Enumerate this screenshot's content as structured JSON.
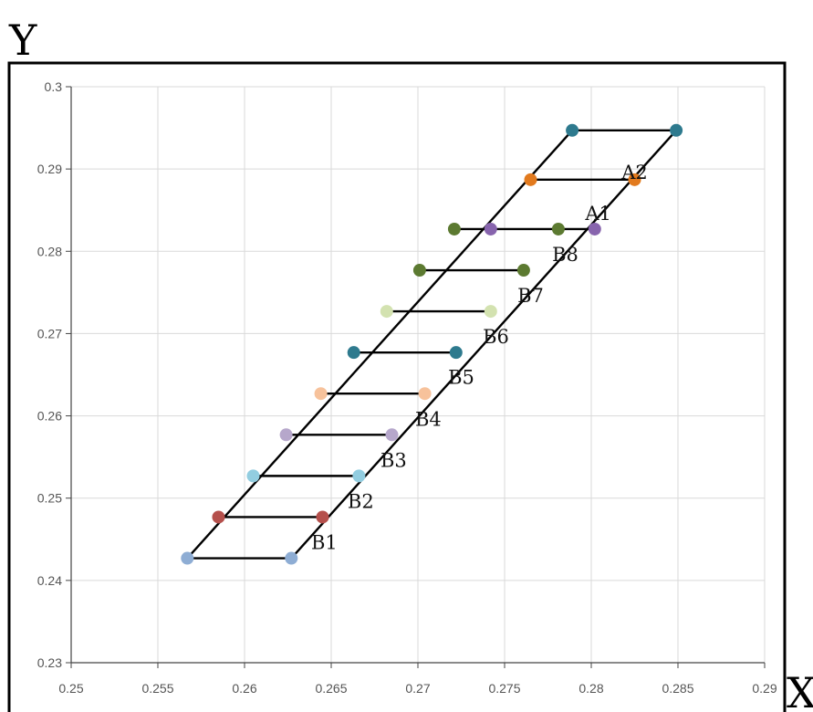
{
  "chart_data": {
    "type": "scatter",
    "xlabel": "X",
    "ylabel": "Y",
    "xlim": [
      0.25,
      0.29
    ],
    "ylim": [
      0.23,
      0.3
    ],
    "x_ticks": [
      "0.25",
      "0.255",
      "0.26",
      "0.265",
      "0.27",
      "0.275",
      "0.28",
      "0.285",
      "0.29"
    ],
    "y_ticks": [
      "0.3",
      "0.29",
      "0.28",
      "0.27",
      "0.26",
      "0.25",
      "0.24",
      "0.23"
    ],
    "x_tick_values": [
      0.25,
      0.255,
      0.26,
      0.265,
      0.27,
      0.275,
      0.28,
      0.285,
      0.29
    ],
    "y_tick_values": [
      0.3,
      0.29,
      0.28,
      0.27,
      0.26,
      0.25,
      0.24,
      0.23
    ],
    "grid": true,
    "regions": [
      {
        "label": "B1",
        "label_pos": [
          0.2646,
          0.2447
        ]
      },
      {
        "label": "B2",
        "label_pos": [
          0.2667,
          0.2497
        ]
      },
      {
        "label": "B3",
        "label_pos": [
          0.2686,
          0.2547
        ]
      },
      {
        "label": "B4",
        "label_pos": [
          0.2706,
          0.2597
        ]
      },
      {
        "label": "B5",
        "label_pos": [
          0.2725,
          0.2648
        ]
      },
      {
        "label": "B6",
        "label_pos": [
          0.2745,
          0.2697
        ]
      },
      {
        "label": "B7",
        "label_pos": [
          0.2765,
          0.2747
        ]
      },
      {
        "label": "B8",
        "label_pos": [
          0.2785,
          0.2797
        ]
      },
      {
        "label": "A1",
        "label_pos": [
          0.2804,
          0.2847
        ]
      },
      {
        "label": "A2",
        "label_pos": [
          0.2825,
          0.2897
        ]
      }
    ],
    "series": [
      {
        "color": "#8eadd4",
        "points": [
          [
            0.2567,
            0.2427
          ],
          [
            0.2627,
            0.2427
          ]
        ]
      },
      {
        "color": "#b5504c",
        "points": [
          [
            0.2585,
            0.2477
          ],
          [
            0.2645,
            0.2477
          ]
        ]
      },
      {
        "color": "#92cde0",
        "points": [
          [
            0.2605,
            0.2527
          ],
          [
            0.2666,
            0.2527
          ]
        ]
      },
      {
        "color": "#b6a7cb",
        "points": [
          [
            0.2624,
            0.2577
          ],
          [
            0.2685,
            0.2577
          ]
        ]
      },
      {
        "color": "#f7c29b",
        "points": [
          [
            0.2644,
            0.2627
          ],
          [
            0.2704,
            0.2627
          ]
        ]
      },
      {
        "color": "#2e7a8e",
        "points": [
          [
            0.2663,
            0.2677
          ],
          [
            0.2722,
            0.2677
          ]
        ]
      },
      {
        "color": "#d3e2b0",
        "points": [
          [
            0.2682,
            0.2727
          ],
          [
            0.2742,
            0.2727
          ]
        ]
      },
      {
        "color": "#5c7a31",
        "points": [
          [
            0.2701,
            0.2777
          ],
          [
            0.2761,
            0.2777
          ]
        ]
      },
      {
        "color": "#5c7a31",
        "points": [
          [
            0.2721,
            0.2827
          ],
          [
            0.2781,
            0.2827
          ]
        ]
      },
      {
        "color": "#8764ad",
        "points": [
          [
            0.2742,
            0.2827
          ],
          [
            0.2802,
            0.2827
          ]
        ]
      },
      {
        "color": "#e27a1e",
        "points": [
          [
            0.2765,
            0.2887
          ],
          [
            0.2825,
            0.2887
          ]
        ]
      },
      {
        "color": "#2e7a8e",
        "points": [
          [
            0.2789,
            0.2947
          ],
          [
            0.2849,
            0.2947
          ]
        ]
      }
    ],
    "rungs": [
      [
        [
          0.2567,
          0.2427
        ],
        [
          0.2627,
          0.2427
        ]
      ],
      [
        [
          0.2585,
          0.2477
        ],
        [
          0.2645,
          0.2477
        ]
      ],
      [
        [
          0.2605,
          0.2527
        ],
        [
          0.2666,
          0.2527
        ]
      ],
      [
        [
          0.2624,
          0.2577
        ],
        [
          0.2685,
          0.2577
        ]
      ],
      [
        [
          0.2644,
          0.2627
        ],
        [
          0.2704,
          0.2627
        ]
      ],
      [
        [
          0.2663,
          0.2677
        ],
        [
          0.2722,
          0.2677
        ]
      ],
      [
        [
          0.2682,
          0.2727
        ],
        [
          0.2742,
          0.2727
        ]
      ],
      [
        [
          0.2701,
          0.2777
        ],
        [
          0.2761,
          0.2777
        ]
      ],
      [
        [
          0.2721,
          0.2827
        ],
        [
          0.2802,
          0.2827
        ]
      ],
      [
        [
          0.2765,
          0.2887
        ],
        [
          0.2825,
          0.2887
        ]
      ],
      [
        [
          0.2789,
          0.2947
        ],
        [
          0.2849,
          0.2947
        ]
      ]
    ],
    "sides": [
      [
        [
          0.2567,
          0.2427
        ],
        [
          0.2789,
          0.2947
        ]
      ],
      [
        [
          0.2627,
          0.2427
        ],
        [
          0.2849,
          0.2947
        ]
      ]
    ]
  }
}
